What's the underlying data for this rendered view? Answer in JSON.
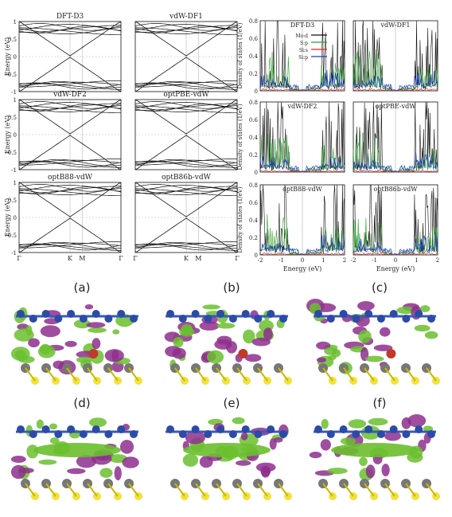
{
  "band_panel": {
    "titles": [
      "DFT-D3",
      "vdW-DF1",
      "vdW-DF2",
      "optPBE-vdW",
      "optB88-vdW",
      "optB86b-vdW"
    ],
    "ylabel": "Energy (eV)",
    "yticks": [
      "1",
      "0.5",
      "0",
      "-0.5",
      "-1"
    ],
    "kpoints": [
      "Γ",
      "K",
      "M",
      "Γ"
    ]
  },
  "dos_panel": {
    "titles": [
      "DFT-D3",
      "vdW-DF1",
      "vdW-DF2",
      "optPBE-vdW",
      "optB88-vdW",
      "optB86b-vdW"
    ],
    "ylabel": "Density of states (1/eV)",
    "xlabel": "Energy (eV)",
    "yticks": [
      "0.8",
      "0.6",
      "0.4",
      "0.2",
      "0"
    ],
    "xticks": [
      "-2",
      "-1",
      "0",
      "1",
      "2"
    ],
    "legend": [
      {
        "label": "Mo:d",
        "color": "#111111"
      },
      {
        "label": "S:p",
        "color": "#2ca02c"
      },
      {
        "label": "Si:s",
        "color": "#d62728"
      },
      {
        "label": "Si:p",
        "color": "#1f3fbf"
      }
    ]
  },
  "density_panel": {
    "labels": [
      "(a)",
      "(b)",
      "(c)",
      "(d)",
      "(e)",
      "(f)"
    ],
    "colors": {
      "accumulation": "#6abf2e",
      "depletion": "#8e2f8e",
      "C_atom": "#2c4aa8",
      "Si_atom": "#f2e23a",
      "S_atom": "#777777",
      "Mo_atom": "#c0392b"
    }
  },
  "chart_data": [
    {
      "type": "line",
      "title": "DFT-D3",
      "xlabel": "",
      "ylabel": "Energy (eV)",
      "ylim": [
        -1,
        1
      ],
      "x_ticks": [
        "Γ",
        "K",
        "M",
        "Γ"
      ],
      "series": []
    },
    {
      "type": "line",
      "title": "DFT-D3",
      "xlabel": "Energy (eV)",
      "ylabel": "Density of states (1/eV)",
      "xlim": [
        -2,
        2
      ],
      "ylim": [
        0,
        0.8
      ],
      "series": [
        {
          "name": "Mo:d",
          "x": [
            -2,
            -1.5,
            -1,
            -0.5,
            0,
            0.5,
            1,
            1.5,
            2
          ],
          "y": [
            0.8,
            0.6,
            0.2,
            0.05,
            0.01,
            0.02,
            0.1,
            0.8,
            0.6
          ]
        },
        {
          "name": "S:p",
          "x": [
            -2,
            -1.5,
            -1,
            -0.5,
            0,
            0.5,
            1,
            1.5,
            2
          ],
          "y": [
            0.35,
            0.1,
            0.05,
            0.02,
            0.01,
            0.01,
            0.04,
            0.15,
            0.1
          ]
        },
        {
          "name": "Si:s",
          "x": [
            -2,
            -1,
            0,
            1,
            2
          ],
          "y": [
            0.01,
            0.02,
            0.01,
            0.02,
            0.01
          ]
        },
        {
          "name": "Si:p",
          "x": [
            -2,
            -1.5,
            -1,
            -0.5,
            0,
            0.5,
            1,
            1.5,
            2
          ],
          "y": [
            0.05,
            0.12,
            0.08,
            0.06,
            0.02,
            0.04,
            0.1,
            0.15,
            0.05
          ]
        }
      ]
    }
  ]
}
